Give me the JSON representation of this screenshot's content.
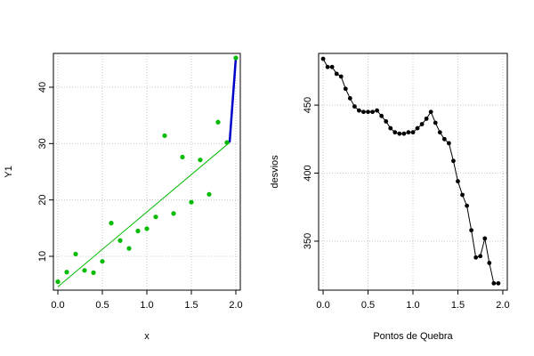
{
  "chart_data": [
    {
      "type": "scatter",
      "xlabel": "x",
      "ylabel": "Y1",
      "xlim": [
        -0.05,
        2.05
      ],
      "ylim": [
        4,
        46
      ],
      "xticks": [
        "0.0",
        "0.5",
        "1.0",
        "1.5",
        "2.0"
      ],
      "xtick_values": [
        0,
        0.5,
        1,
        1.5,
        2
      ],
      "yticks": [
        "10",
        "20",
        "30",
        "40"
      ],
      "ytick_values": [
        10,
        20,
        30,
        40
      ],
      "grid": true,
      "colors": {
        "points": "#00bb00",
        "fit_line": "#00bb00",
        "break_line": "#0000cc"
      },
      "points": [
        {
          "x": 0.0,
          "y": 5.5
        },
        {
          "x": 0.1,
          "y": 7.2
        },
        {
          "x": 0.2,
          "y": 10.4
        },
        {
          "x": 0.3,
          "y": 7.5
        },
        {
          "x": 0.4,
          "y": 7.1
        },
        {
          "x": 0.5,
          "y": 9.1
        },
        {
          "x": 0.6,
          "y": 15.9
        },
        {
          "x": 0.7,
          "y": 12.8
        },
        {
          "x": 0.8,
          "y": 11.4
        },
        {
          "x": 0.9,
          "y": 14.5
        },
        {
          "x": 1.0,
          "y": 14.9
        },
        {
          "x": 1.1,
          "y": 17.0
        },
        {
          "x": 1.2,
          "y": 31.4
        },
        {
          "x": 1.3,
          "y": 17.6
        },
        {
          "x": 1.4,
          "y": 27.6
        },
        {
          "x": 1.5,
          "y": 19.6
        },
        {
          "x": 1.6,
          "y": 27.1
        },
        {
          "x": 1.7,
          "y": 21.0
        },
        {
          "x": 1.8,
          "y": 33.8
        },
        {
          "x": 1.9,
          "y": 30.2
        },
        {
          "x": 2.0,
          "y": 45.2
        }
      ],
      "fit_line": [
        {
          "x": 0.0,
          "y": 4.6
        },
        {
          "x": 1.93,
          "y": 30.2
        }
      ],
      "break_line": [
        {
          "x": 1.93,
          "y": 30.2
        },
        {
          "x": 2.0,
          "y": 45.2
        }
      ]
    },
    {
      "type": "line",
      "xlabel": "Pontos de Quebra",
      "ylabel": "desvios",
      "xlim": [
        -0.05,
        2.05
      ],
      "ylim": [
        314,
        488
      ],
      "xticks": [
        "0.0",
        "0.5",
        "1.0",
        "1.5",
        "2.0"
      ],
      "xtick_values": [
        0,
        0.5,
        1,
        1.5,
        2
      ],
      "yticks": [
        "350",
        "400",
        "450"
      ],
      "ytick_values": [
        350,
        400,
        450
      ],
      "grid": true,
      "colors": {
        "line": "#000000",
        "points": "#000000"
      },
      "x": [
        0.0,
        0.05,
        0.1,
        0.15,
        0.2,
        0.25,
        0.3,
        0.35,
        0.4,
        0.45,
        0.5,
        0.55,
        0.6,
        0.65,
        0.7,
        0.75,
        0.8,
        0.85,
        0.9,
        0.95,
        1.0,
        1.05,
        1.1,
        1.15,
        1.2,
        1.25,
        1.3,
        1.35,
        1.4,
        1.45,
        1.5,
        1.55,
        1.6,
        1.65,
        1.7,
        1.75,
        1.8,
        1.85,
        1.9,
        1.95
      ],
      "y": [
        484,
        478,
        478,
        473,
        471,
        462,
        455,
        449,
        446,
        445,
        445,
        445,
        446,
        442,
        438,
        433,
        430,
        429,
        429,
        430,
        430,
        433,
        436,
        440,
        445,
        437,
        430,
        425,
        422,
        409,
        394,
        384,
        376,
        358,
        338,
        339,
        352,
        334,
        319,
        319
      ]
    }
  ]
}
